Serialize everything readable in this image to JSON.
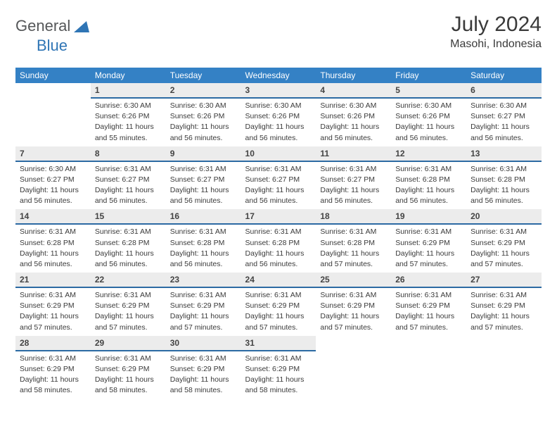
{
  "logo": {
    "text_general": "General",
    "text_blue": "Blue",
    "triangle_color": "#2f75b5"
  },
  "title": "July 2024",
  "subtitle": "Masohi, Indonesia",
  "weekday_headers": [
    "Sunday",
    "Monday",
    "Tuesday",
    "Wednesday",
    "Thursday",
    "Friday",
    "Saturday"
  ],
  "style": {
    "header_bg": "#3481c5",
    "header_fg": "#ffffff",
    "daynum_bg": "#ececec",
    "daynum_border": "#2c6aa3",
    "body_text": "#3a3a3a",
    "font_family": "Arial",
    "title_fontsize": 30,
    "subtitle_fontsize": 16,
    "header_fontsize": 12,
    "daynum_fontsize": 12,
    "cell_fontsize": 10.5
  },
  "weeks": [
    [
      null,
      {
        "day": "1",
        "sunrise": "Sunrise: 6:30 AM",
        "sunset": "Sunset: 6:26 PM",
        "daylight1": "Daylight: 11 hours",
        "daylight2": "and 55 minutes."
      },
      {
        "day": "2",
        "sunrise": "Sunrise: 6:30 AM",
        "sunset": "Sunset: 6:26 PM",
        "daylight1": "Daylight: 11 hours",
        "daylight2": "and 56 minutes."
      },
      {
        "day": "3",
        "sunrise": "Sunrise: 6:30 AM",
        "sunset": "Sunset: 6:26 PM",
        "daylight1": "Daylight: 11 hours",
        "daylight2": "and 56 minutes."
      },
      {
        "day": "4",
        "sunrise": "Sunrise: 6:30 AM",
        "sunset": "Sunset: 6:26 PM",
        "daylight1": "Daylight: 11 hours",
        "daylight2": "and 56 minutes."
      },
      {
        "day": "5",
        "sunrise": "Sunrise: 6:30 AM",
        "sunset": "Sunset: 6:26 PM",
        "daylight1": "Daylight: 11 hours",
        "daylight2": "and 56 minutes."
      },
      {
        "day": "6",
        "sunrise": "Sunrise: 6:30 AM",
        "sunset": "Sunset: 6:27 PM",
        "daylight1": "Daylight: 11 hours",
        "daylight2": "and 56 minutes."
      }
    ],
    [
      {
        "day": "7",
        "sunrise": "Sunrise: 6:30 AM",
        "sunset": "Sunset: 6:27 PM",
        "daylight1": "Daylight: 11 hours",
        "daylight2": "and 56 minutes."
      },
      {
        "day": "8",
        "sunrise": "Sunrise: 6:31 AM",
        "sunset": "Sunset: 6:27 PM",
        "daylight1": "Daylight: 11 hours",
        "daylight2": "and 56 minutes."
      },
      {
        "day": "9",
        "sunrise": "Sunrise: 6:31 AM",
        "sunset": "Sunset: 6:27 PM",
        "daylight1": "Daylight: 11 hours",
        "daylight2": "and 56 minutes."
      },
      {
        "day": "10",
        "sunrise": "Sunrise: 6:31 AM",
        "sunset": "Sunset: 6:27 PM",
        "daylight1": "Daylight: 11 hours",
        "daylight2": "and 56 minutes."
      },
      {
        "day": "11",
        "sunrise": "Sunrise: 6:31 AM",
        "sunset": "Sunset: 6:27 PM",
        "daylight1": "Daylight: 11 hours",
        "daylight2": "and 56 minutes."
      },
      {
        "day": "12",
        "sunrise": "Sunrise: 6:31 AM",
        "sunset": "Sunset: 6:28 PM",
        "daylight1": "Daylight: 11 hours",
        "daylight2": "and 56 minutes."
      },
      {
        "day": "13",
        "sunrise": "Sunrise: 6:31 AM",
        "sunset": "Sunset: 6:28 PM",
        "daylight1": "Daylight: 11 hours",
        "daylight2": "and 56 minutes."
      }
    ],
    [
      {
        "day": "14",
        "sunrise": "Sunrise: 6:31 AM",
        "sunset": "Sunset: 6:28 PM",
        "daylight1": "Daylight: 11 hours",
        "daylight2": "and 56 minutes."
      },
      {
        "day": "15",
        "sunrise": "Sunrise: 6:31 AM",
        "sunset": "Sunset: 6:28 PM",
        "daylight1": "Daylight: 11 hours",
        "daylight2": "and 56 minutes."
      },
      {
        "day": "16",
        "sunrise": "Sunrise: 6:31 AM",
        "sunset": "Sunset: 6:28 PM",
        "daylight1": "Daylight: 11 hours",
        "daylight2": "and 56 minutes."
      },
      {
        "day": "17",
        "sunrise": "Sunrise: 6:31 AM",
        "sunset": "Sunset: 6:28 PM",
        "daylight1": "Daylight: 11 hours",
        "daylight2": "and 56 minutes."
      },
      {
        "day": "18",
        "sunrise": "Sunrise: 6:31 AM",
        "sunset": "Sunset: 6:28 PM",
        "daylight1": "Daylight: 11 hours",
        "daylight2": "and 57 minutes."
      },
      {
        "day": "19",
        "sunrise": "Sunrise: 6:31 AM",
        "sunset": "Sunset: 6:29 PM",
        "daylight1": "Daylight: 11 hours",
        "daylight2": "and 57 minutes."
      },
      {
        "day": "20",
        "sunrise": "Sunrise: 6:31 AM",
        "sunset": "Sunset: 6:29 PM",
        "daylight1": "Daylight: 11 hours",
        "daylight2": "and 57 minutes."
      }
    ],
    [
      {
        "day": "21",
        "sunrise": "Sunrise: 6:31 AM",
        "sunset": "Sunset: 6:29 PM",
        "daylight1": "Daylight: 11 hours",
        "daylight2": "and 57 minutes."
      },
      {
        "day": "22",
        "sunrise": "Sunrise: 6:31 AM",
        "sunset": "Sunset: 6:29 PM",
        "daylight1": "Daylight: 11 hours",
        "daylight2": "and 57 minutes."
      },
      {
        "day": "23",
        "sunrise": "Sunrise: 6:31 AM",
        "sunset": "Sunset: 6:29 PM",
        "daylight1": "Daylight: 11 hours",
        "daylight2": "and 57 minutes."
      },
      {
        "day": "24",
        "sunrise": "Sunrise: 6:31 AM",
        "sunset": "Sunset: 6:29 PM",
        "daylight1": "Daylight: 11 hours",
        "daylight2": "and 57 minutes."
      },
      {
        "day": "25",
        "sunrise": "Sunrise: 6:31 AM",
        "sunset": "Sunset: 6:29 PM",
        "daylight1": "Daylight: 11 hours",
        "daylight2": "and 57 minutes."
      },
      {
        "day": "26",
        "sunrise": "Sunrise: 6:31 AM",
        "sunset": "Sunset: 6:29 PM",
        "daylight1": "Daylight: 11 hours",
        "daylight2": "and 57 minutes."
      },
      {
        "day": "27",
        "sunrise": "Sunrise: 6:31 AM",
        "sunset": "Sunset: 6:29 PM",
        "daylight1": "Daylight: 11 hours",
        "daylight2": "and 57 minutes."
      }
    ],
    [
      {
        "day": "28",
        "sunrise": "Sunrise: 6:31 AM",
        "sunset": "Sunset: 6:29 PM",
        "daylight1": "Daylight: 11 hours",
        "daylight2": "and 58 minutes."
      },
      {
        "day": "29",
        "sunrise": "Sunrise: 6:31 AM",
        "sunset": "Sunset: 6:29 PM",
        "daylight1": "Daylight: 11 hours",
        "daylight2": "and 58 minutes."
      },
      {
        "day": "30",
        "sunrise": "Sunrise: 6:31 AM",
        "sunset": "Sunset: 6:29 PM",
        "daylight1": "Daylight: 11 hours",
        "daylight2": "and 58 minutes."
      },
      {
        "day": "31",
        "sunrise": "Sunrise: 6:31 AM",
        "sunset": "Sunset: 6:29 PM",
        "daylight1": "Daylight: 11 hours",
        "daylight2": "and 58 minutes."
      },
      null,
      null,
      null
    ]
  ]
}
